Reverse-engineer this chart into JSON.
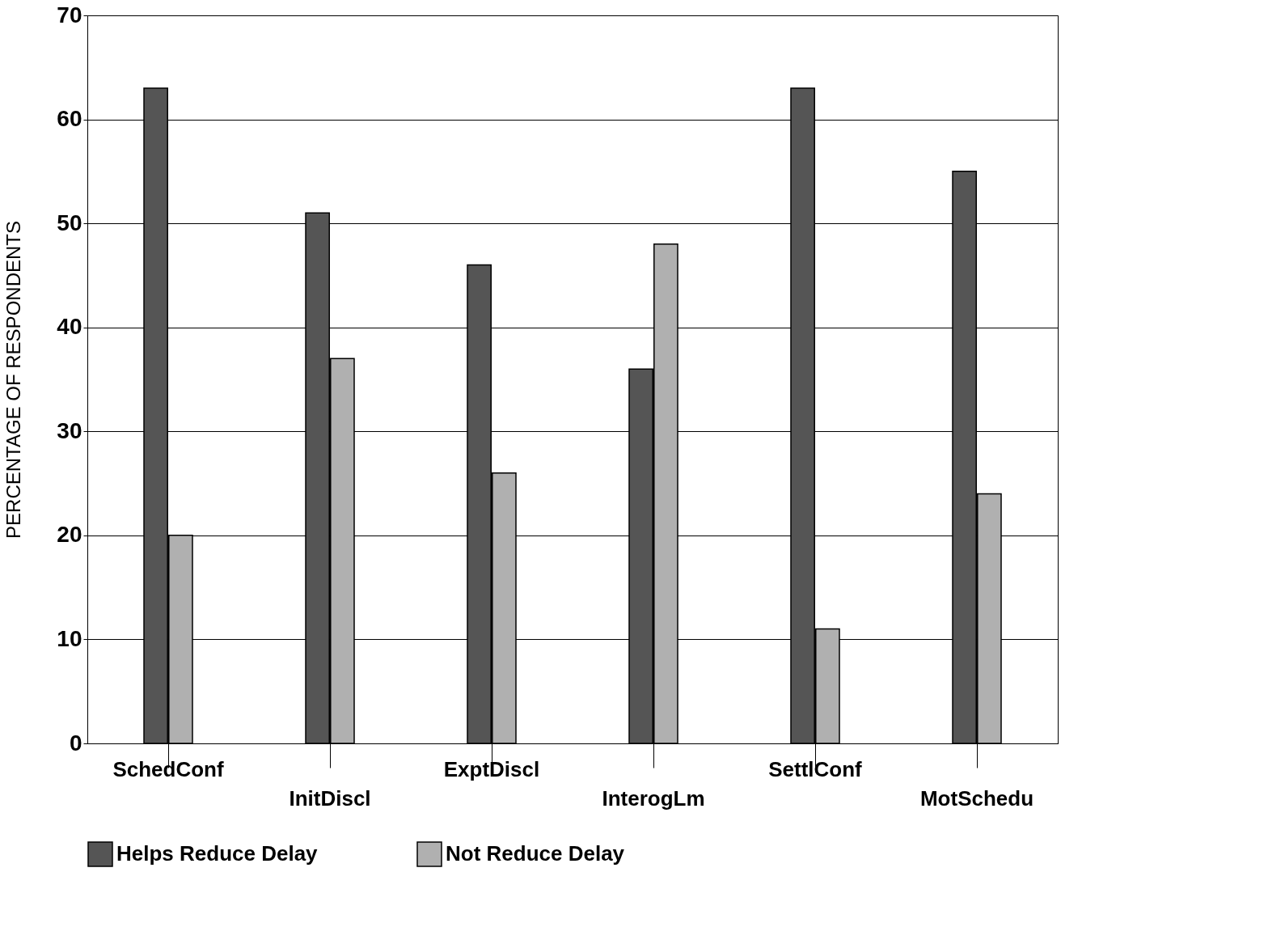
{
  "chart_data": {
    "type": "bar",
    "ylabel": "PERCENTAGE OF RESPONDENTS",
    "categories": [
      "SchedConf",
      "InitDiscl",
      "ExptDiscl",
      "InterogLm",
      "SettlConf",
      "MotSchedu"
    ],
    "series": [
      {
        "name": "Helps Reduce Delay",
        "color": "#555555",
        "values": [
          63,
          51,
          46,
          36,
          63,
          55
        ]
      },
      {
        "name": "Not Reduce Delay",
        "color": "#b0b0b0",
        "values": [
          20,
          37,
          26,
          48,
          11,
          24
        ]
      }
    ],
    "ylim": [
      0,
      70
    ],
    "yticks": [
      0,
      10,
      20,
      30,
      40,
      50,
      60,
      70
    ],
    "grid": "y",
    "legend": "bottom"
  }
}
